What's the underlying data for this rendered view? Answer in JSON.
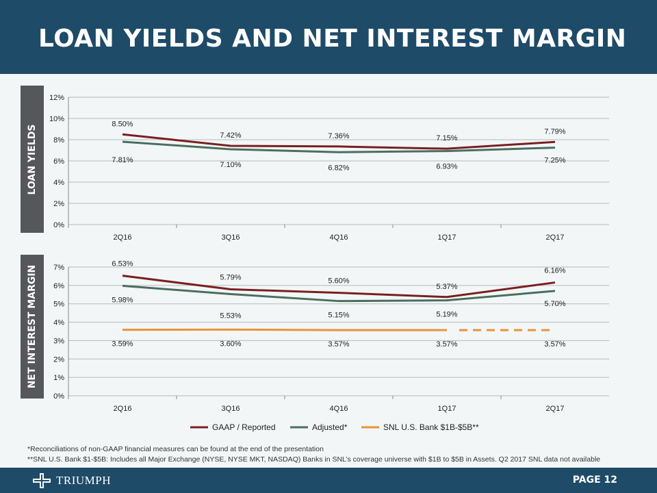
{
  "page_title": "LOAN YIELDS AND NET INTEREST MARGIN",
  "side_labels": {
    "loan_yields": "LOAN YIELDS",
    "net_interest_margin": "NET INTEREST MARGIN"
  },
  "colors": {
    "gaap": "#7a1f1f",
    "adjusted": "#4a6e5e",
    "snl": "#e8933a",
    "header": "#1e4b68"
  },
  "chart_data": [
    {
      "type": "line",
      "name": "loan-yields",
      "categories": [
        "2Q16",
        "3Q16",
        "4Q16",
        "1Q17",
        "2Q17"
      ],
      "ylim": [
        0,
        12
      ],
      "yticks": [
        "0%",
        "2%",
        "4%",
        "6%",
        "8%",
        "10%",
        "12%"
      ],
      "series": [
        {
          "name": "GAAP / Reported",
          "key": "gaap",
          "values": [
            8.5,
            7.42,
            7.36,
            7.15,
            7.79
          ],
          "labels": [
            "8.50%",
            "7.42%",
            "7.36%",
            "7.15%",
            "7.79%"
          ]
        },
        {
          "name": "Adjusted*",
          "key": "adjusted",
          "values": [
            7.81,
            7.1,
            6.82,
            6.93,
            7.25
          ],
          "labels": [
            "7.81%",
            "7.10%",
            "6.82%",
            "6.93%",
            "7.25%"
          ]
        }
      ]
    },
    {
      "type": "line",
      "name": "net-interest-margin",
      "categories": [
        "2Q16",
        "3Q16",
        "4Q16",
        "1Q17",
        "2Q17"
      ],
      "ylim": [
        0,
        7
      ],
      "yticks": [
        "0%",
        "1%",
        "2%",
        "3%",
        "4%",
        "5%",
        "6%",
        "7%"
      ],
      "series": [
        {
          "name": "GAAP / Reported",
          "key": "gaap",
          "values": [
            6.53,
            5.79,
            5.6,
            5.37,
            6.16
          ],
          "labels": [
            "6.53%",
            "5.79%",
            "5.60%",
            "5.37%",
            "6.16%"
          ]
        },
        {
          "name": "Adjusted*",
          "key": "adjusted",
          "values": [
            5.98,
            5.53,
            5.15,
            5.19,
            5.7
          ],
          "labels": [
            "5.98%",
            "5.53%",
            "5.15%",
            "5.19%",
            "5.70%"
          ]
        },
        {
          "name": "SNL U.S. Bank $1B-$5B**",
          "key": "snl",
          "values": [
            3.59,
            3.6,
            3.57,
            3.57,
            3.57
          ],
          "labels": [
            "3.59%",
            "3.60%",
            "3.57%",
            "3.57%",
            "3.57%"
          ],
          "dashed_last_segment": true
        }
      ],
      "legend": [
        "GAAP / Reported",
        "Adjusted*",
        "SNL U.S. Bank $1B-$5B**"
      ]
    }
  ],
  "footnotes": [
    "*Reconciliations of non-GAAP financial measures can be found at the end of the presentation",
    "**SNL U.S. Bank $1-$5B: Includes all Major Exchange (NYSE, NYSE MKT, NASDAQ) Banks in SNL’s coverage universe with $1B to $5B in Assets. Q2 2017 SNL data not available"
  ],
  "footer": {
    "logo_text": "TRIUMPH",
    "page": "PAGE 12"
  }
}
